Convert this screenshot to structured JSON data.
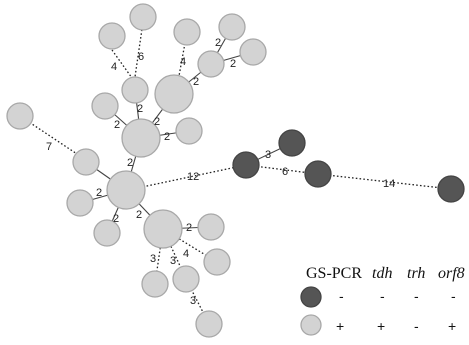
{
  "edge_labels": [
    "6",
    "4",
    "4",
    "2",
    "2",
    "2",
    "2",
    "2",
    "2",
    "7",
    "2",
    "2",
    "2",
    "2",
    "12",
    "3",
    "6",
    "14",
    "2",
    "2",
    "3",
    "3",
    "4",
    "3"
  ],
  "legend": {
    "headers": [
      "GS-PCR",
      "tdh",
      "trh",
      "orf8"
    ],
    "rows": [
      {
        "type": "dark",
        "values": [
          "-",
          "-",
          "-",
          "-"
        ]
      },
      {
        "type": "light",
        "values": [
          "+",
          "+",
          "-",
          "+"
        ]
      }
    ],
    "colors": {
      "dark": "#555555",
      "light": "#d3d3d3"
    }
  }
}
